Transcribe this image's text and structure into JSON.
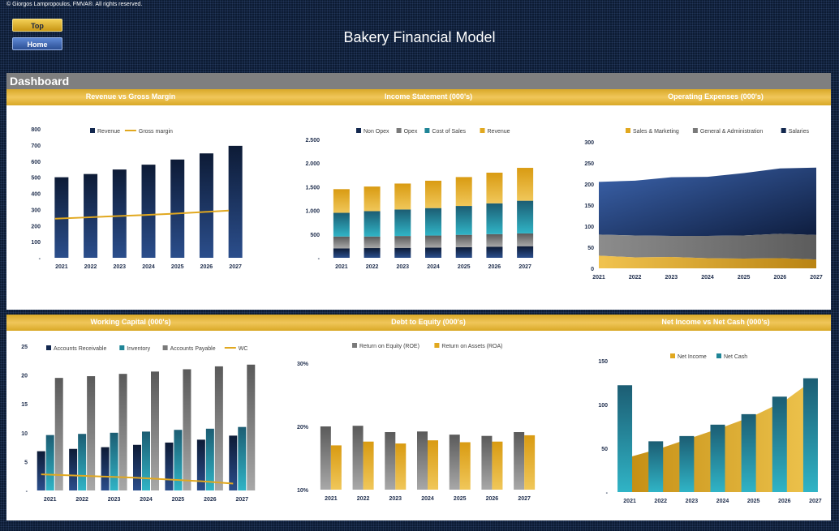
{
  "header": {
    "copyright": "© Giorgos Lampropoulos, FMVA®. All rights reserved.",
    "top_button": "Top",
    "home_button": "Home",
    "title": "Bakery Financial Model"
  },
  "dashboard": {
    "title": "Dashboard",
    "panel_titles": [
      "Revenue vs Gross Margin",
      "Income Statement (000's)",
      "Operating Expenses (000's)",
      "Working Capital (000's)",
      "Debt to Equity (000's)",
      "Net Income vs Net Cash (000's)"
    ]
  },
  "colors": {
    "navy": "#13284f",
    "teal": "#1f8597",
    "gray": "#7a7a7a",
    "gold": "#e1a81f",
    "banner": "#e2b23a"
  },
  "chart_data": [
    {
      "type": "bar",
      "title": "Revenue vs Gross Margin",
      "categories": [
        "2021",
        "2022",
        "2023",
        "2024",
        "2025",
        "2026",
        "2027"
      ],
      "yticks": [
        "-",
        "100",
        "200",
        "300",
        "400",
        "500",
        "600",
        "700",
        "800"
      ],
      "ylim": [
        0,
        800
      ],
      "legend": "top",
      "series": [
        {
          "name": "Revenue",
          "kind": "bar",
          "values": [
            500,
            520,
            548,
            578,
            610,
            648,
            695
          ]
        },
        {
          "name": "Gross margin",
          "kind": "line",
          "values": [
            243,
            250,
            258,
            265,
            273,
            283,
            293
          ]
        }
      ]
    },
    {
      "type": "bar",
      "stacked": true,
      "title": "Income Statement (000's)",
      "categories": [
        "2021",
        "2022",
        "2023",
        "2024",
        "2025",
        "2026",
        "2027"
      ],
      "yticks": [
        "-",
        "500",
        "1.000",
        "1.500",
        "2.000",
        "2.500"
      ],
      "ylim": [
        0,
        2500
      ],
      "legend": "top",
      "series": [
        {
          "name": "Non Opex",
          "values": [
            200,
            205,
            210,
            215,
            225,
            235,
            245
          ]
        },
        {
          "name": "Opex",
          "values": [
            250,
            245,
            250,
            255,
            260,
            265,
            270
          ]
        },
        {
          "name": "Cost of Sales",
          "values": [
            500,
            535,
            560,
            580,
            610,
            650,
            690
          ]
        },
        {
          "name": "Revenue",
          "values": [
            500,
            520,
            548,
            578,
            610,
            648,
            695
          ]
        }
      ]
    },
    {
      "type": "area",
      "stacked": true,
      "title": "Operating Expenses (000's)",
      "categories": [
        "2021",
        "2022",
        "2023",
        "2024",
        "2025",
        "2026",
        "2027"
      ],
      "yticks": [
        "0",
        "50",
        "100",
        "150",
        "200",
        "250",
        "300"
      ],
      "ylim": [
        0,
        300
      ],
      "legend": "top",
      "series": [
        {
          "name": "Sales & Marketing",
          "values": [
            30,
            26,
            27,
            24,
            23,
            24,
            21
          ]
        },
        {
          "name": "General & Administration",
          "values": [
            50,
            52,
            50,
            53,
            55,
            58,
            58
          ]
        },
        {
          "name": "Salaries",
          "values": [
            125,
            130,
            139,
            140,
            148,
            155,
            160
          ]
        }
      ]
    },
    {
      "type": "bar",
      "title": "Working Capital (000's)",
      "categories": [
        "2021",
        "2022",
        "2023",
        "2024",
        "2025",
        "2026",
        "2027"
      ],
      "yticks": [
        "-",
        "5",
        "10",
        "15",
        "20",
        "25"
      ],
      "ylim": [
        0,
        25
      ],
      "legend": "top",
      "series": [
        {
          "name": "Accounts Receivable",
          "kind": "bar",
          "values": [
            6.8,
            7.2,
            7.5,
            7.9,
            8.3,
            8.8,
            9.5
          ]
        },
        {
          "name": "Inventory",
          "kind": "bar",
          "values": [
            9.6,
            9.8,
            10.0,
            10.2,
            10.5,
            10.7,
            11.0
          ]
        },
        {
          "name": "Accounts Payable",
          "kind": "bar",
          "values": [
            19.5,
            19.8,
            20.2,
            20.6,
            21.0,
            21.5,
            21.8
          ]
        },
        {
          "name": "WC",
          "kind": "line",
          "values": [
            2.8,
            2.6,
            2.4,
            2.2,
            1.9,
            1.6,
            1.2
          ]
        }
      ]
    },
    {
      "type": "bar",
      "title": "Debt to Equity (000's)",
      "categories": [
        "2021",
        "2022",
        "2023",
        "2024",
        "2025",
        "2026",
        "2027"
      ],
      "yticks": [
        "10%",
        "20%",
        "30%"
      ],
      "ylim": [
        10,
        30
      ],
      "legend": "top",
      "series": [
        {
          "name": "Return on Equity (ROE)",
          "values": [
            20.0,
            20.1,
            19.1,
            19.2,
            18.7,
            18.5,
            19.1
          ]
        },
        {
          "name": "Return on Assets (ROA)",
          "values": [
            17.0,
            17.6,
            17.3,
            17.8,
            17.5,
            17.6,
            18.6
          ]
        }
      ]
    },
    {
      "type": "bar",
      "title": "Net Income vs Net Cash (000's)",
      "categories": [
        "2021",
        "2022",
        "2023",
        "2024",
        "2025",
        "2026",
        "2027"
      ],
      "yticks": [
        "-",
        "50",
        "100",
        "150"
      ],
      "ylim": [
        0,
        150
      ],
      "legend": "top",
      "series": [
        {
          "name": "Net Income",
          "kind": "area",
          "values": [
            40,
            50,
            62,
            74,
            87,
            104,
            130
          ]
        },
        {
          "name": "Net Cash",
          "kind": "bar",
          "values": [
            122,
            58,
            64,
            77,
            89,
            109,
            130
          ]
        }
      ]
    }
  ]
}
